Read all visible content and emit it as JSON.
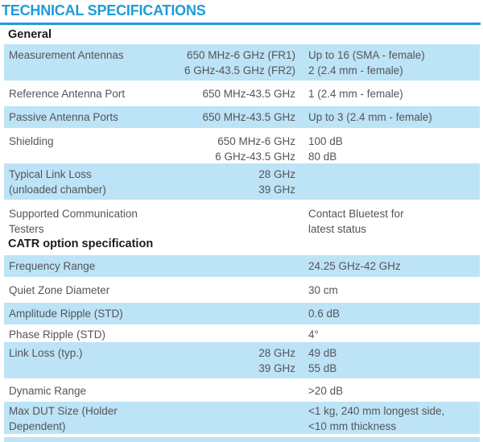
{
  "title": "TECHNICAL SPECIFICATIONS",
  "colors": {
    "accent": "#1d9cd8",
    "row_background": "#bde3f6",
    "body_text": "#54555a",
    "heading_text": "#1c1c1c"
  },
  "sections": [
    {
      "heading": "General",
      "rows": [
        {
          "label": "Measurement Antennas",
          "mid": "650 MHz-6 GHz (FR1)\n6 GHz-43.5 GHz (FR2)",
          "value": "Up to 16 (SMA - female)\n2 (2.4 mm - female)"
        },
        {
          "label": "Reference Antenna Port",
          "mid": "650 MHz-43.5 GHz",
          "value": "1 (2.4 mm - female)"
        },
        {
          "label": "Passive Antenna Ports",
          "mid": "650 MHz-43.5 GHz",
          "value": "Up to 3 (2.4 mm - female)"
        },
        {
          "label": "Shielding",
          "mid": "650 MHz-6 GHz\n6 GHz-43.5 GHz",
          "value": "100 dB\n80 dB"
        },
        {
          "label": "Typical Link Loss\n(unloaded chamber)",
          "mid": "28 GHz\n39 GHz",
          "value": ""
        },
        {
          "label": "Supported Communication\nTesters",
          "mid": "",
          "value": "Contact Bluetest for\nlatest status"
        }
      ]
    },
    {
      "heading": "CATR option specification",
      "rows": [
        {
          "label": "Frequency Range",
          "mid": "",
          "value": "24.25 GHz-42 GHz"
        },
        {
          "label": "Quiet Zone Diameter",
          "mid": "",
          "value": "30 cm"
        },
        {
          "label": "Amplitude Ripple (STD)",
          "mid": "",
          "value": "0.6 dB"
        },
        {
          "label": "Phase Ripple (STD)",
          "mid": "",
          "value": "4°"
        },
        {
          "label": "Link Loss (typ.)",
          "mid": "28 GHz\n39 GHz",
          "value": "49 dB\n55 dB"
        },
        {
          "label": "Dynamic Range",
          "mid": "",
          "value": ">20 dB"
        },
        {
          "label": "Max DUT Size (Holder\nDependent)",
          "mid": "",
          "value": "<1 kg, 240 mm longest side,\n<10 mm thickness"
        }
      ]
    }
  ]
}
